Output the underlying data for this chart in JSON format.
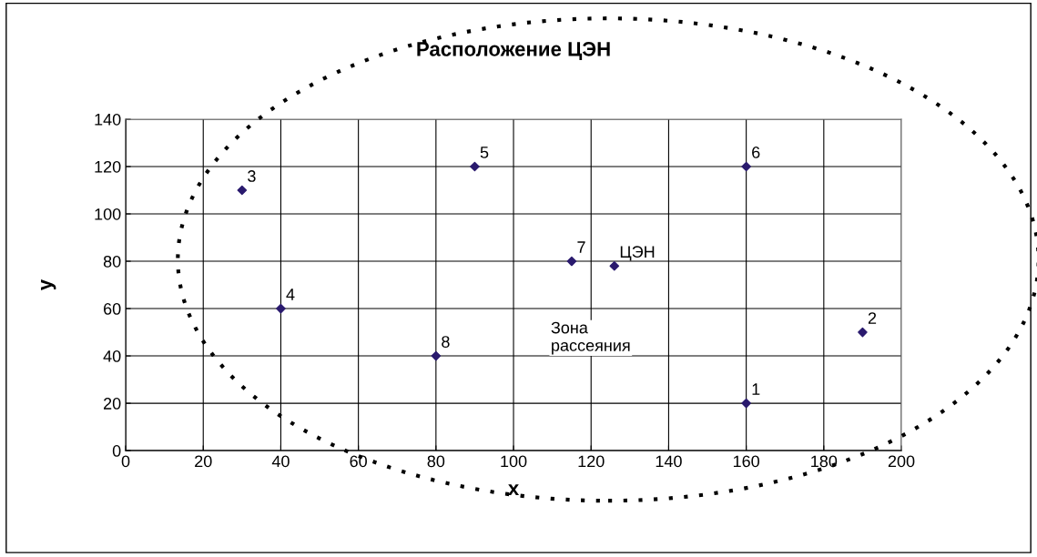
{
  "chart_data": {
    "type": "scatter",
    "title": "Расположение ЦЭН",
    "xlabel": "x",
    "ylabel": "y",
    "x": [
      160,
      190,
      30,
      40,
      90,
      160,
      115,
      80,
      126
    ],
    "series": [
      {
        "color": "#2a1a6e",
        "values": [
          20,
          50,
          110,
          60,
          120,
          120,
          80,
          40,
          78
        ]
      }
    ],
    "annotations": [
      {
        "text": "1",
        "x": 160,
        "y": 20
      },
      {
        "text": "2",
        "x": 190,
        "y": 50
      },
      {
        "text": "3",
        "x": 30,
        "y": 110
      },
      {
        "text": "4",
        "x": 40,
        "y": 60
      },
      {
        "text": "5",
        "x": 90,
        "y": 120
      },
      {
        "text": "6",
        "x": 160,
        "y": 120
      },
      {
        "text": "7",
        "x": 115,
        "y": 80
      },
      {
        "text": "8",
        "x": 80,
        "y": 40
      },
      {
        "text": "ЦЭН",
        "x": 126,
        "y": 78
      },
      "Зона\nрассеяния"
    ],
    "xlim": [
      0,
      200
    ],
    "xticks": [
      0,
      20,
      40,
      60,
      80,
      100,
      120,
      140,
      160,
      180,
      200
    ],
    "ylim": [
      0,
      140
    ],
    "yticks": [
      0,
      20,
      40,
      60,
      80,
      100,
      120,
      140
    ],
    "grid": true,
    "marker": "diamond",
    "legend": false
  }
}
